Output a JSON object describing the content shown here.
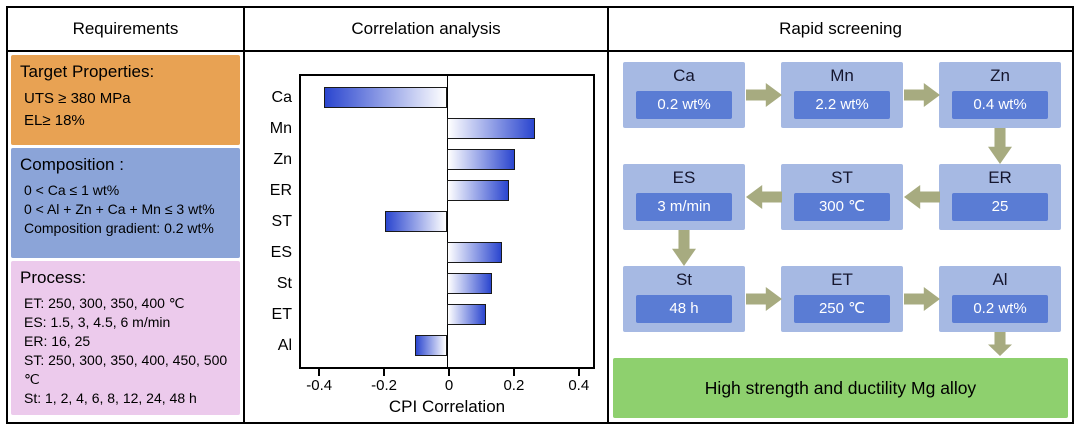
{
  "requirements": {
    "title": "Requirements",
    "target": {
      "heading": "Target Properties:",
      "lines": [
        "UTS ≥ 380 MPa",
        "EL≥ 18%"
      ]
    },
    "composition": {
      "heading": "Composition :",
      "lines": [
        "0 < Ca ≤ 1 wt%",
        "0 < Al + Zn + Ca + Mn ≤ 3 wt%",
        "Composition gradient: 0.2 wt%"
      ]
    },
    "process": {
      "heading": "Process:",
      "lines": [
        "ET: 250, 300, 350, 400 ℃",
        "ES: 1.5, 3, 4.5, 6 m/min",
        "ER: 16, 25",
        "ST: 250, 300, 350, 400, 450, 500 ℃",
        "St: 1, 2, 4, 6, 8, 12, 24, 48 h"
      ]
    }
  },
  "correlation": {
    "title": "Correlation analysis"
  },
  "chart_data": {
    "type": "bar",
    "orientation": "horizontal",
    "categories": [
      "Ca",
      "Mn",
      "Zn",
      "ER",
      "ST",
      "ES",
      "St",
      "ET",
      "Al"
    ],
    "values": [
      -0.38,
      0.27,
      0.21,
      0.19,
      -0.19,
      0.17,
      0.14,
      0.12,
      -0.1
    ],
    "title": "",
    "xlabel": "CPI Correlation",
    "ylabel": "",
    "xlim": [
      -0.45,
      0.45
    ],
    "xticks": [
      -0.4,
      -0.2,
      0,
      0.2,
      0.4
    ],
    "grid": false,
    "bar_gradient": [
      "#ffffff",
      "#2b46cf"
    ]
  },
  "screening": {
    "title": "Rapid screening",
    "rows": [
      {
        "direction": "right",
        "nodes": [
          {
            "label": "Ca",
            "value": "0.2 wt%"
          },
          {
            "label": "Mn",
            "value": "2.2 wt%"
          },
          {
            "label": "Zn",
            "value": "0.4 wt%"
          }
        ]
      },
      {
        "direction": "left",
        "nodes": [
          {
            "label": "ES",
            "value": "3 m/min"
          },
          {
            "label": "ST",
            "value": "300 ℃"
          },
          {
            "label": "ER",
            "value": "25"
          }
        ]
      },
      {
        "direction": "right",
        "nodes": [
          {
            "label": "St",
            "value": "48 h"
          },
          {
            "label": "ET",
            "value": "250 ℃"
          },
          {
            "label": "Al",
            "value": "0.2 wt%"
          }
        ]
      }
    ],
    "result": "High strength and ductility Mg alloy"
  },
  "colors": {
    "target_box": "#e8a253",
    "composition_box": "#8ba4d8",
    "process_box": "#eccaec",
    "node_outer": "#a6b9e3",
    "node_inner": "#5a7cd4",
    "arrow": "#a7ab80",
    "result_box": "#8ed06e",
    "bar_blue": "#2b46cf"
  }
}
